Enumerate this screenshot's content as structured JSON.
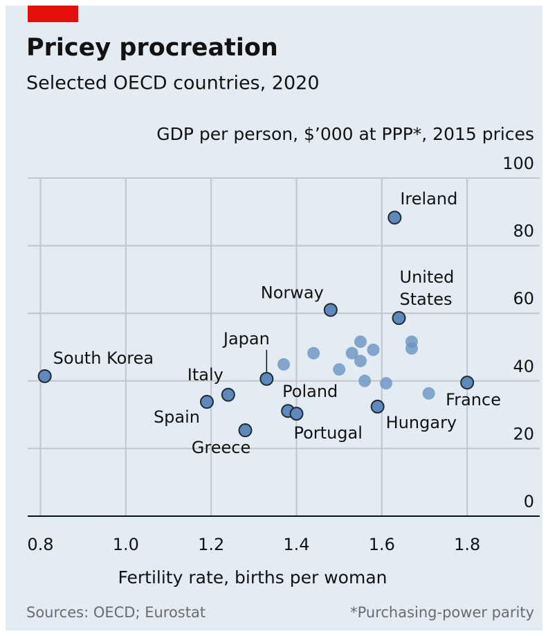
{
  "chart_data": {
    "type": "scatter",
    "title": "Pricey procreation",
    "subtitle": "Selected OECD countries, 2020",
    "y_label": "GDP per person, $’000 at PPP*, 2015 prices",
    "x_label": "Fertility rate, births per woman",
    "source": "Sources: OECD; Eurostat",
    "footnote": "*Purchasing-power parity",
    "x": [
      0.81,
      1.19,
      1.24,
      1.28,
      1.33,
      1.38,
      1.4,
      1.48,
      1.59,
      1.63,
      1.64,
      1.8,
      1.37,
      1.44,
      1.5,
      1.53,
      1.55,
      1.55,
      1.58,
      1.56,
      1.61,
      1.67,
      1.67,
      1.71
    ],
    "values": [
      41.4,
      33.8,
      35.9,
      25.4,
      40.6,
      31.1,
      30.3,
      61.0,
      32.4,
      88.3,
      58.6,
      39.5,
      44.9,
      48.2,
      43.4,
      48.2,
      51.6,
      45.9,
      49.2,
      40.0,
      39.3,
      51.6,
      49.6,
      36.3
    ],
    "labels": [
      "South Korea",
      "Spain",
      "Italy",
      "Greece",
      "Japan",
      "Poland",
      "Portugal",
      "Norway",
      "Hungary",
      "Ireland",
      "United States",
      "France",
      null,
      null,
      null,
      null,
      null,
      null,
      null,
      null,
      null,
      null,
      null,
      null
    ],
    "color": "#6b93c2",
    "highlight_color": "#5f89ba",
    "xlim": [
      0.77,
      1.97
    ],
    "ylim": [
      0,
      100
    ],
    "xticks": [
      0.8,
      {
        "value": 1,
        "label": "1.0"
      },
      1.2,
      1.4,
      1.6,
      1.8
    ],
    "yticks": [
      0,
      20,
      40,
      60,
      80,
      100
    ],
    "grid": true
  }
}
